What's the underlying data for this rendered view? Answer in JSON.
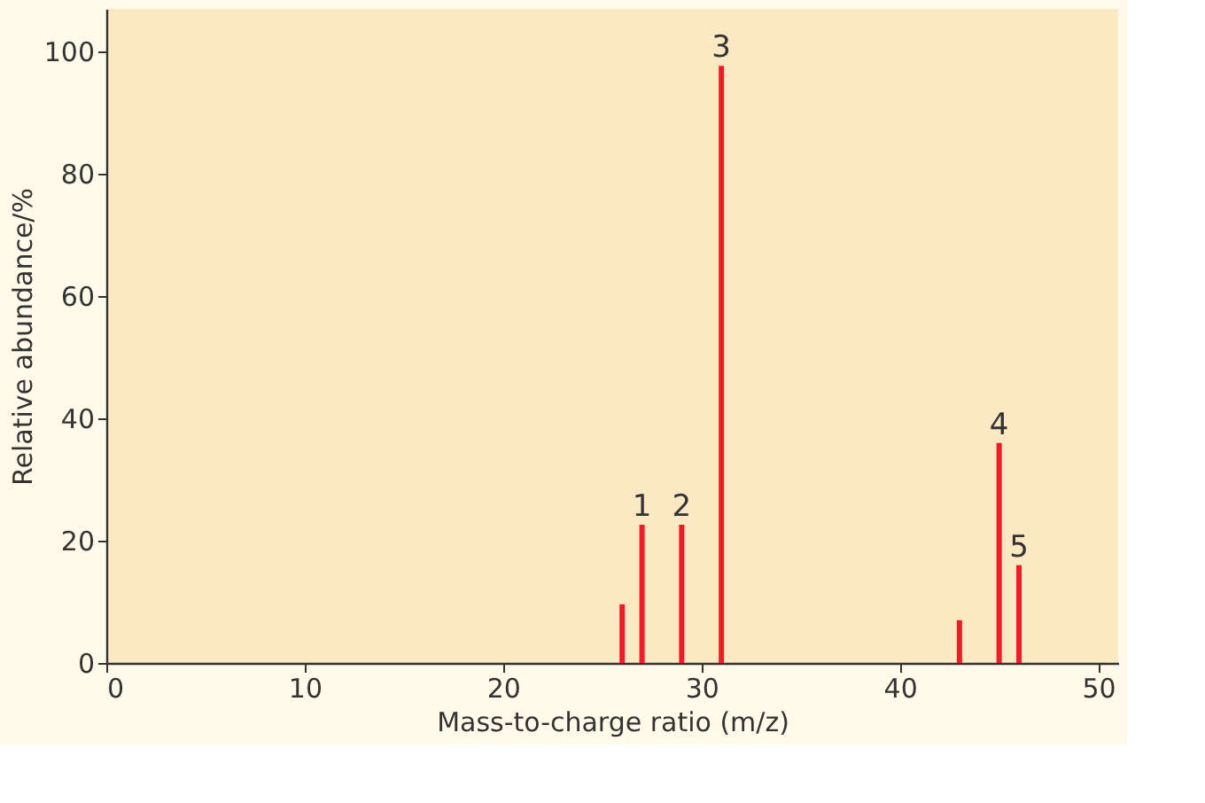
{
  "chart_data": {
    "type": "bar",
    "xlabel": "Mass-to-charge ratio (m/z)",
    "ylabel": "Relative abundance/%",
    "x": [
      26,
      27,
      29,
      31,
      43,
      45,
      46
    ],
    "values": [
      9.6,
      22.6,
      22.6,
      97.7,
      7,
      36,
      16
    ],
    "color": "#ee1c25",
    "xlim": [
      0,
      51
    ],
    "xticks": [
      0,
      10,
      20,
      30,
      40,
      50
    ],
    "ylim": [
      0,
      107
    ],
    "yticks": [
      0,
      20,
      40,
      60,
      80,
      100
    ],
    "grid": false,
    "annotations": [
      {
        "text": "1",
        "x": 27,
        "y": 22.6
      },
      {
        "text": "2",
        "x": 29,
        "y": 22.6
      },
      {
        "text": "3",
        "x": 31,
        "y": 97.7
      },
      {
        "text": "4",
        "x": 45,
        "y": 36
      },
      {
        "text": "5",
        "x": 46,
        "y": 16
      }
    ]
  }
}
